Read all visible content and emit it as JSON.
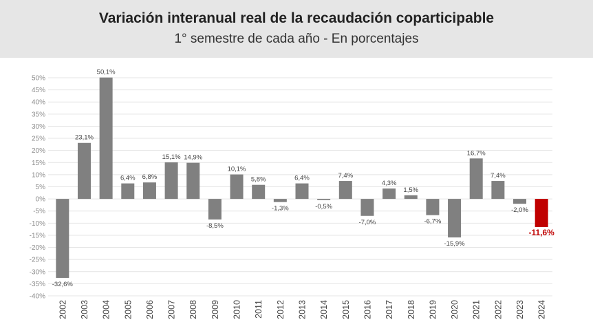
{
  "header": {
    "title": "Variación interanual real de la recaudación coparticipable",
    "subtitle": "1° semestre de cada año - En porcentajes"
  },
  "colors": {
    "bar": "#808080",
    "highlight": "#c00000",
    "grid": "#e4e4e4",
    "axis_text": "#8a8a8a",
    "label_text": "#444444"
  },
  "chart_data": {
    "type": "bar",
    "title": "Variación interanual real de la recaudación coparticipable",
    "subtitle": "1° semestre de cada año - En porcentajes",
    "xlabel": "",
    "ylabel": "",
    "ylim": [
      -40,
      50
    ],
    "yticks": [
      "50%",
      "45%",
      "40%",
      "35%",
      "30%",
      "25%",
      "20%",
      "15%",
      "10%",
      "5%",
      "0%",
      "-5%",
      "-10%",
      "-15%",
      "-20%",
      "-25%",
      "-30%",
      "-35%",
      "-40%"
    ],
    "categories": [
      "2002",
      "2003",
      "2004",
      "2005",
      "2006",
      "2007",
      "2008",
      "2009",
      "2010",
      "2011",
      "2012",
      "2013",
      "2014",
      "2015",
      "2016",
      "2017",
      "2018",
      "2019",
      "2020",
      "2021",
      "2022",
      "2023",
      "2024"
    ],
    "values": [
      -32.6,
      23.1,
      50.1,
      6.4,
      6.8,
      15.1,
      14.9,
      -8.5,
      10.1,
      5.8,
      -1.3,
      6.4,
      -0.5,
      7.4,
      -7.0,
      4.3,
      1.5,
      -6.7,
      -15.9,
      16.7,
      7.4,
      -2.0,
      -11.6
    ],
    "labels": [
      "-32,6%",
      "23,1%",
      "50,1%",
      "6,4%",
      "6,8%",
      "15,1%",
      "14,9%",
      "-8,5%",
      "10,1%",
      "5,8%",
      "-1,3%",
      "6,4%",
      "-0,5%",
      "7,4%",
      "-7,0%",
      "4,3%",
      "1,5%",
      "-6,7%",
      "-15,9%",
      "16,7%",
      "7,4%",
      "-2,0%",
      "-11,6%"
    ],
    "highlight_category": "2024",
    "grid": true
  }
}
